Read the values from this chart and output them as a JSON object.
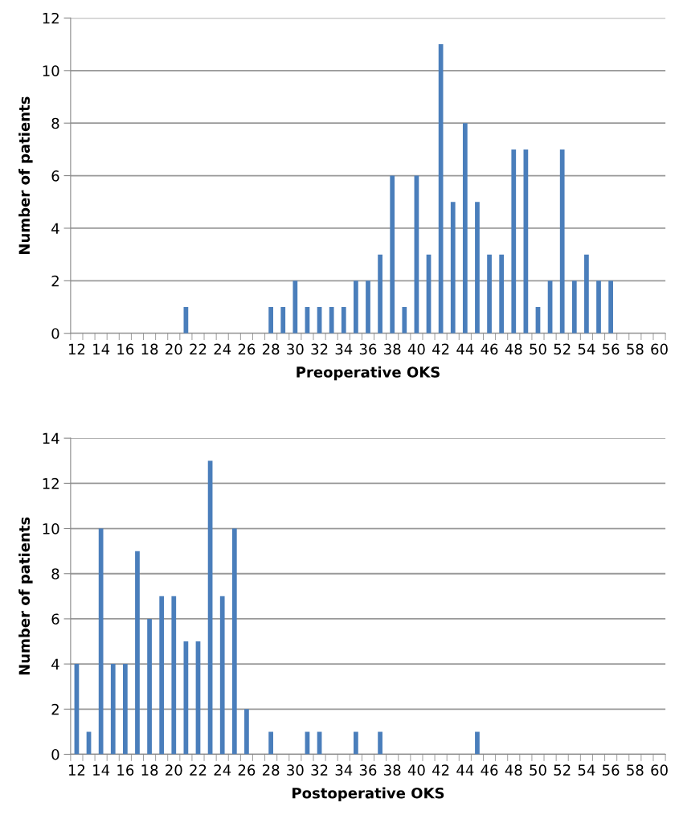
{
  "chart_data": [
    {
      "type": "bar",
      "xlabel": "Preoperative OKS",
      "ylabel": "Number of patients",
      "color": "#4a7ebb",
      "grid": "y",
      "categories": [
        "12",
        null,
        "14",
        null,
        "16",
        null,
        "18",
        null,
        "20",
        null,
        "22",
        null,
        "24",
        null,
        "26",
        null,
        "28",
        null,
        "30",
        null,
        "32",
        null,
        "34",
        null,
        "36",
        null,
        "38",
        null,
        "40",
        null,
        "42",
        null,
        "44",
        null,
        "46",
        null,
        "48",
        null,
        "50",
        null,
        "52",
        null,
        "54",
        null,
        "56",
        null,
        "58",
        null,
        "60"
      ],
      "values": [
        0,
        0,
        0,
        0,
        0,
        0,
        0,
        0,
        0,
        1,
        0,
        0,
        0,
        0,
        0,
        0,
        1,
        1,
        2,
        1,
        1,
        1,
        1,
        2,
        2,
        3,
        6,
        1,
        6,
        3,
        11,
        5,
        8,
        5,
        3,
        3,
        7,
        7,
        1,
        2,
        7,
        2,
        3,
        2,
        2,
        0,
        0,
        0,
        0
      ],
      "ylim": [
        0,
        12
      ],
      "yticks": [
        0,
        2,
        4,
        6,
        8,
        10,
        12
      ]
    },
    {
      "type": "bar",
      "xlabel": "Postoperative OKS",
      "ylabel": "Number of patients",
      "color": "#4a7ebb",
      "grid": "y",
      "categories": [
        "12",
        null,
        "14",
        null,
        "16",
        null,
        "18",
        null,
        "20",
        null,
        "22",
        null,
        "24",
        null,
        "26",
        null,
        "28",
        null,
        "30",
        null,
        "32",
        null,
        "34",
        null,
        "36",
        null,
        "38",
        null,
        "40",
        null,
        "42",
        null,
        "44",
        null,
        "46",
        null,
        "48",
        null,
        "50",
        null,
        "52",
        null,
        "54",
        null,
        "56",
        null,
        "58",
        null,
        "60"
      ],
      "values": [
        4,
        1,
        10,
        4,
        4,
        9,
        6,
        7,
        7,
        5,
        5,
        13,
        7,
        10,
        2,
        0,
        1,
        0,
        0,
        1,
        1,
        0,
        0,
        1,
        0,
        1,
        0,
        0,
        0,
        0,
        0,
        0,
        0,
        1,
        0,
        0,
        0,
        0,
        0,
        0,
        0,
        0,
        0,
        0,
        0,
        0,
        0,
        0,
        0
      ],
      "ylim": [
        0,
        14
      ],
      "yticks": [
        0,
        2,
        4,
        6,
        8,
        10,
        12,
        14
      ]
    }
  ]
}
